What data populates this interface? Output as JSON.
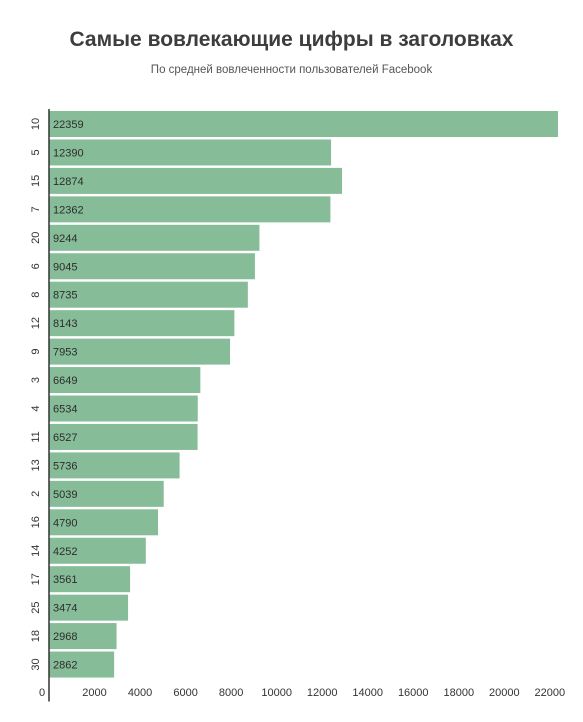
{
  "chart_data": {
    "type": "bar",
    "orientation": "horizontal",
    "title": "Самые вовлекающие цифры в заголовках",
    "subtitle": "По средней вовлеченности пользователей Facebook",
    "categories": [
      "10",
      "5",
      "15",
      "7",
      "20",
      "6",
      "8",
      "12",
      "9",
      "3",
      "4",
      "11",
      "13",
      "2",
      "16",
      "14",
      "17",
      "25",
      "18",
      "30"
    ],
    "values": [
      22359,
      12390,
      12874,
      12362,
      9244,
      9045,
      8735,
      8143,
      7953,
      6649,
      6534,
      6527,
      5736,
      5039,
      4790,
      4252,
      3561,
      3474,
      2968,
      2862
    ],
    "xlim": [
      0,
      22359
    ],
    "x_ticks": [
      "0",
      "2000",
      "4000",
      "6000",
      "8000",
      "10000",
      "12000",
      "14000",
      "16000",
      "18000",
      "20000",
      "22000"
    ],
    "x_tick_values": [
      0,
      2000,
      4000,
      6000,
      8000,
      10000,
      12000,
      14000,
      16000,
      18000,
      20000,
      22000
    ],
    "grid": false,
    "bar_color": "#86bc98",
    "axis_color": "#333333"
  }
}
